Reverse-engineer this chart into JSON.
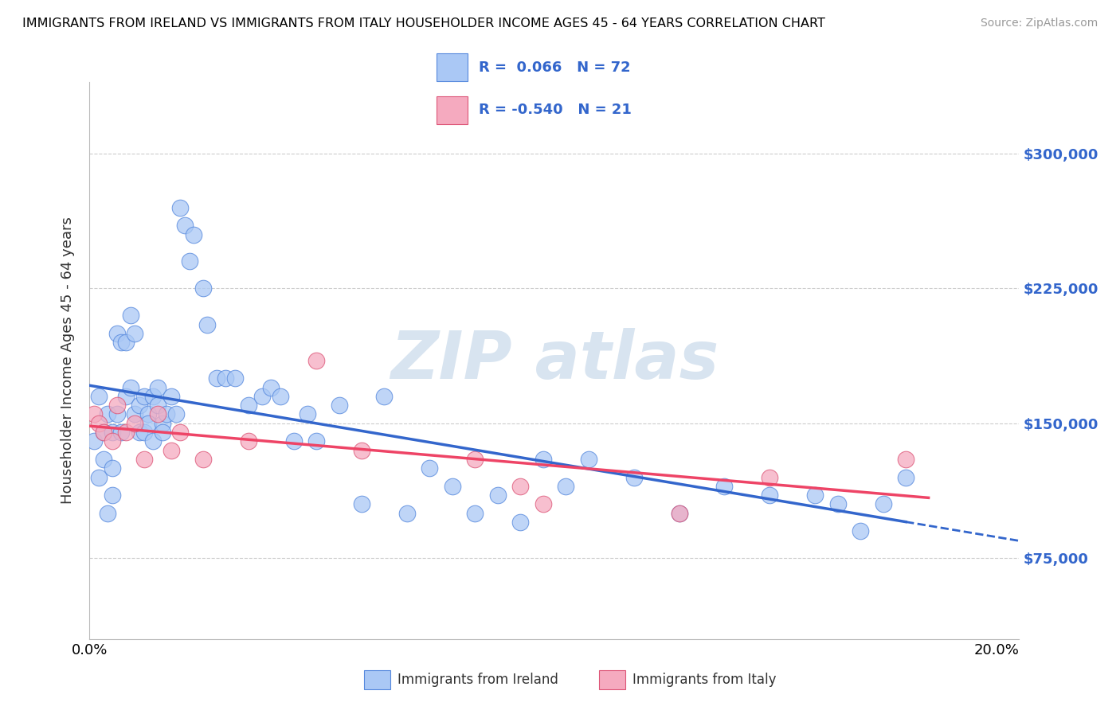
{
  "title": "IMMIGRANTS FROM IRELAND VS IMMIGRANTS FROM ITALY HOUSEHOLDER INCOME AGES 45 - 64 YEARS CORRELATION CHART",
  "source": "Source: ZipAtlas.com",
  "ylabel": "Householder Income Ages 45 - 64 years",
  "xlim_min": 0.0,
  "xlim_max": 0.205,
  "ylim_min": 30000,
  "ylim_max": 340000,
  "ytick_vals": [
    75000,
    150000,
    225000,
    300000
  ],
  "ytick_labels": [
    "$75,000",
    "$150,000",
    "$225,000",
    "$300,000"
  ],
  "xtick_vals": [
    0.0,
    0.2
  ],
  "xtick_labels": [
    "0.0%",
    "20.0%"
  ],
  "legend_r_ireland": "0.066",
  "legend_n_ireland": "72",
  "legend_r_italy": "-0.540",
  "legend_n_italy": "21",
  "ireland_color": "#aac8f5",
  "italy_color": "#f5aabf",
  "ireland_edge_color": "#5588dd",
  "italy_edge_color": "#dd5577",
  "ireland_line_color": "#3366cc",
  "italy_line_color": "#ee4466",
  "grid_color": "#cccccc",
  "watermark_color": "#d8e4f0",
  "ireland_x": [
    0.001,
    0.002,
    0.002,
    0.003,
    0.003,
    0.004,
    0.004,
    0.005,
    0.005,
    0.005,
    0.006,
    0.006,
    0.007,
    0.007,
    0.008,
    0.008,
    0.009,
    0.009,
    0.01,
    0.01,
    0.011,
    0.011,
    0.012,
    0.012,
    0.013,
    0.013,
    0.014,
    0.014,
    0.015,
    0.015,
    0.016,
    0.016,
    0.017,
    0.018,
    0.019,
    0.02,
    0.021,
    0.022,
    0.023,
    0.025,
    0.026,
    0.028,
    0.03,
    0.032,
    0.035,
    0.038,
    0.04,
    0.042,
    0.045,
    0.048,
    0.05,
    0.055,
    0.06,
    0.065,
    0.07,
    0.075,
    0.08,
    0.085,
    0.09,
    0.095,
    0.1,
    0.105,
    0.11,
    0.12,
    0.13,
    0.14,
    0.15,
    0.16,
    0.165,
    0.17,
    0.175,
    0.18
  ],
  "ireland_y": [
    140000,
    120000,
    165000,
    145000,
    130000,
    155000,
    100000,
    125000,
    145000,
    110000,
    200000,
    155000,
    195000,
    145000,
    165000,
    195000,
    170000,
    210000,
    155000,
    200000,
    160000,
    145000,
    165000,
    145000,
    155000,
    150000,
    165000,
    140000,
    160000,
    170000,
    150000,
    145000,
    155000,
    165000,
    155000,
    270000,
    260000,
    240000,
    255000,
    225000,
    205000,
    175000,
    175000,
    175000,
    160000,
    165000,
    170000,
    165000,
    140000,
    155000,
    140000,
    160000,
    105000,
    165000,
    100000,
    125000,
    115000,
    100000,
    110000,
    95000,
    130000,
    115000,
    130000,
    120000,
    100000,
    115000,
    110000,
    110000,
    105000,
    90000,
    105000,
    120000
  ],
  "italy_x": [
    0.001,
    0.002,
    0.003,
    0.005,
    0.006,
    0.008,
    0.01,
    0.012,
    0.015,
    0.018,
    0.02,
    0.025,
    0.035,
    0.05,
    0.06,
    0.085,
    0.095,
    0.1,
    0.13,
    0.15,
    0.18
  ],
  "italy_y": [
    155000,
    150000,
    145000,
    140000,
    160000,
    145000,
    150000,
    130000,
    155000,
    135000,
    145000,
    130000,
    140000,
    185000,
    135000,
    130000,
    115000,
    105000,
    100000,
    120000,
    130000
  ]
}
